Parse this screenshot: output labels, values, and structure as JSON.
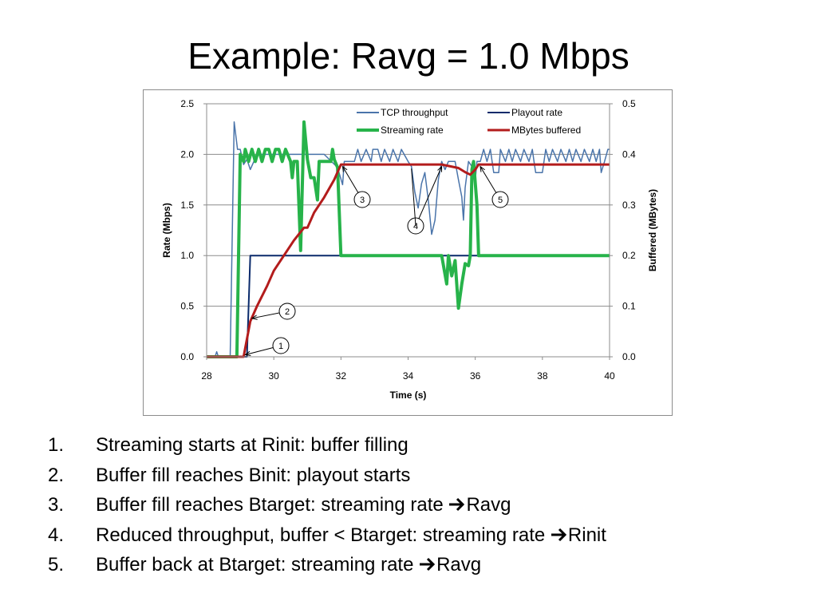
{
  "slide": {
    "title": "Example: Ravg = 1.0 Mbps"
  },
  "chart_data": {
    "type": "line",
    "xlabel": "Time (s)",
    "ylabel": "Rate (Mbps)",
    "y2label": "Buffered (MBytes)",
    "xlim": [
      28,
      40
    ],
    "ylim": [
      0,
      2.5
    ],
    "y2lim": [
      0,
      0.5
    ],
    "xticks": [
      28,
      30,
      32,
      34,
      36,
      38,
      40
    ],
    "xtick_labels": [
      "28",
      "30",
      "32",
      "34",
      "36",
      "38",
      "40"
    ],
    "yticks": [
      0,
      0.5,
      1,
      1.5,
      2,
      2.5
    ],
    "ytick_labels": [
      "0.0",
      "0.5",
      "1.0",
      "1.5",
      "2.0",
      "2.5"
    ],
    "y2ticks": [
      0,
      0.1,
      0.2,
      0.3,
      0.4,
      0.5
    ],
    "y2tick_labels": [
      "0.0",
      "0.1",
      "0.2",
      "0.3",
      "0.4",
      "0.5"
    ],
    "grid": true,
    "legend_position": "top-right",
    "series": [
      {
        "name": "TCP throughput",
        "axis": "left",
        "color": "#4a74aa",
        "width": 1.5,
        "points": [
          [
            28,
            0
          ],
          [
            28.25,
            0
          ],
          [
            28.3,
            0.05
          ],
          [
            28.35,
            0
          ],
          [
            28.7,
            0
          ],
          [
            28.82,
            2.32
          ],
          [
            28.92,
            2.05
          ],
          [
            29.0,
            2.05
          ],
          [
            29.1,
            1.9
          ],
          [
            29.2,
            1.95
          ],
          [
            29.3,
            1.85
          ],
          [
            29.5,
            2.0
          ],
          [
            30,
            2.0
          ],
          [
            30.5,
            2.0
          ],
          [
            31,
            2.0
          ],
          [
            31.5,
            2.0
          ],
          [
            31.9,
            1.87
          ],
          [
            32.05,
            1.7
          ],
          [
            32.1,
            1.93
          ],
          [
            32.4,
            1.93
          ],
          [
            32.5,
            2.05
          ],
          [
            32.6,
            1.93
          ],
          [
            32.75,
            2.05
          ],
          [
            32.9,
            1.93
          ],
          [
            32.95,
            2.05
          ],
          [
            33.1,
            2.05
          ],
          [
            33.2,
            1.93
          ],
          [
            33.3,
            2.05
          ],
          [
            33.45,
            1.93
          ],
          [
            33.55,
            2.05
          ],
          [
            33.7,
            1.93
          ],
          [
            33.8,
            2.05
          ],
          [
            34.0,
            1.93
          ],
          [
            34.1,
            1.88
          ],
          [
            34.2,
            1.63
          ],
          [
            34.3,
            1.47
          ],
          [
            34.4,
            1.71
          ],
          [
            34.5,
            1.82
          ],
          [
            34.6,
            1.55
          ],
          [
            34.7,
            1.21
          ],
          [
            34.8,
            1.35
          ],
          [
            34.9,
            1.75
          ],
          [
            35.0,
            1.93
          ],
          [
            35.1,
            1.85
          ],
          [
            35.2,
            1.93
          ],
          [
            35.4,
            1.93
          ],
          [
            35.5,
            1.75
          ],
          [
            35.6,
            1.58
          ],
          [
            35.65,
            1.35
          ],
          [
            35.7,
            1.67
          ],
          [
            35.8,
            1.93
          ],
          [
            35.9,
            1.88
          ],
          [
            36.0,
            1.75
          ],
          [
            36.05,
            1.93
          ],
          [
            36.15,
            1.93
          ],
          [
            36.25,
            2.05
          ],
          [
            36.35,
            1.93
          ],
          [
            36.45,
            2.05
          ],
          [
            36.55,
            1.82
          ],
          [
            36.7,
            1.82
          ],
          [
            36.75,
            2.05
          ],
          [
            36.9,
            1.93
          ],
          [
            37.0,
            2.05
          ],
          [
            37.1,
            1.93
          ],
          [
            37.2,
            2.05
          ],
          [
            37.35,
            1.93
          ],
          [
            37.45,
            2.05
          ],
          [
            37.6,
            1.93
          ],
          [
            37.7,
            2.05
          ],
          [
            37.75,
            1.93
          ],
          [
            37.8,
            1.82
          ],
          [
            38.0,
            1.82
          ],
          [
            38.1,
            2.05
          ],
          [
            38.2,
            1.93
          ],
          [
            38.3,
            2.05
          ],
          [
            38.45,
            1.93
          ],
          [
            38.55,
            2.05
          ],
          [
            38.7,
            1.93
          ],
          [
            38.8,
            2.05
          ],
          [
            38.9,
            1.93
          ],
          [
            39.0,
            2.05
          ],
          [
            39.15,
            1.93
          ],
          [
            39.25,
            2.05
          ],
          [
            39.4,
            1.93
          ],
          [
            39.5,
            2.05
          ],
          [
            39.6,
            1.93
          ],
          [
            39.7,
            2.05
          ],
          [
            39.75,
            1.82
          ],
          [
            39.85,
            1.93
          ],
          [
            39.95,
            2.05
          ],
          [
            40.0,
            2.05
          ]
        ]
      },
      {
        "name": "Playout rate",
        "axis": "left",
        "color": "#0a2a6b",
        "width": 2,
        "points": [
          [
            28,
            0
          ],
          [
            29.2,
            0
          ],
          [
            29.25,
            0.5
          ],
          [
            29.3,
            1.0
          ],
          [
            40,
            1.0
          ]
        ]
      },
      {
        "name": "Streaming rate",
        "axis": "left",
        "color": "#27b34a",
        "width": 4,
        "points": [
          [
            28,
            0
          ],
          [
            28.9,
            0
          ],
          [
            29.0,
            2.0
          ],
          [
            29.1,
            1.93
          ],
          [
            29.15,
            2.05
          ],
          [
            29.25,
            1.93
          ],
          [
            29.35,
            2.05
          ],
          [
            29.45,
            1.93
          ],
          [
            29.55,
            2.05
          ],
          [
            29.65,
            1.93
          ],
          [
            29.75,
            2.05
          ],
          [
            29.85,
            2.05
          ],
          [
            29.95,
            1.93
          ],
          [
            30.05,
            2.05
          ],
          [
            30.15,
            2.05
          ],
          [
            30.25,
            1.93
          ],
          [
            30.35,
            2.05
          ],
          [
            30.5,
            1.93
          ],
          [
            30.55,
            1.77
          ],
          [
            30.6,
            1.93
          ],
          [
            30.7,
            1.93
          ],
          [
            30.8,
            1.05
          ],
          [
            30.9,
            2.32
          ],
          [
            31.0,
            1.95
          ],
          [
            31.1,
            1.77
          ],
          [
            31.2,
            1.77
          ],
          [
            31.3,
            1.55
          ],
          [
            31.35,
            1.93
          ],
          [
            31.7,
            1.93
          ],
          [
            31.75,
            2.05
          ],
          [
            31.8,
            1.95
          ],
          [
            31.9,
            1.87
          ],
          [
            32.0,
            1.0
          ],
          [
            35.0,
            1.0
          ],
          [
            35.15,
            0.72
          ],
          [
            35.2,
            1.0
          ],
          [
            35.3,
            0.8
          ],
          [
            35.4,
            0.95
          ],
          [
            35.5,
            0.48
          ],
          [
            35.6,
            0.72
          ],
          [
            35.7,
            0.92
          ],
          [
            35.8,
            0.9
          ],
          [
            35.85,
            1.0
          ],
          [
            35.9,
            1.85
          ],
          [
            35.95,
            1.93
          ],
          [
            36.05,
            1.5
          ],
          [
            36.1,
            1.0
          ],
          [
            40,
            1.0
          ]
        ]
      },
      {
        "name": "MBytes buffered",
        "axis": "right",
        "color": "#b31c1c",
        "width": 3,
        "points": [
          [
            28,
            0
          ],
          [
            29.1,
            0
          ],
          [
            29.3,
            0.07
          ],
          [
            29.5,
            0.1
          ],
          [
            29.8,
            0.14
          ],
          [
            30.0,
            0.17
          ],
          [
            30.3,
            0.2
          ],
          [
            30.6,
            0.23
          ],
          [
            30.9,
            0.255
          ],
          [
            31.0,
            0.255
          ],
          [
            31.2,
            0.285
          ],
          [
            31.5,
            0.315
          ],
          [
            31.8,
            0.35
          ],
          [
            32.0,
            0.38
          ],
          [
            35.0,
            0.38
          ],
          [
            35.5,
            0.373
          ],
          [
            35.7,
            0.365
          ],
          [
            35.85,
            0.36
          ],
          [
            36.0,
            0.37
          ],
          [
            36.1,
            0.38
          ],
          [
            40,
            0.38
          ]
        ]
      }
    ],
    "annotations": [
      {
        "label": "1",
        "x": 29.15,
        "y": 0.02
      },
      {
        "label": "2",
        "x": 29.35,
        "y": 0.38
      },
      {
        "label": "3",
        "x": 32.05,
        "y": 1.88
      },
      {
        "label": "4",
        "x": 35.0,
        "y": 1.88
      },
      {
        "label": "5",
        "x": 36.15,
        "y": 1.88
      }
    ]
  },
  "list": {
    "items": [
      {
        "num": "1.",
        "text": "Streaming starts at Rinit: buffer filling",
        "pre": "",
        "post": ""
      },
      {
        "num": "2.",
        "text": "Buffer fill reaches Binit: playout starts",
        "pre": "",
        "post": ""
      },
      {
        "num": "3.",
        "text": "",
        "pre": "Buffer fill reaches Btarget: streaming rate ",
        "post": "Ravg"
      },
      {
        "num": "4.",
        "text": "",
        "pre": "Reduced throughput, buffer < Btarget: streaming rate ",
        "post": "Rinit"
      },
      {
        "num": "5.",
        "text": "",
        "pre": "Buffer back at Btarget: streaming rate ",
        "post": "Ravg"
      }
    ]
  }
}
